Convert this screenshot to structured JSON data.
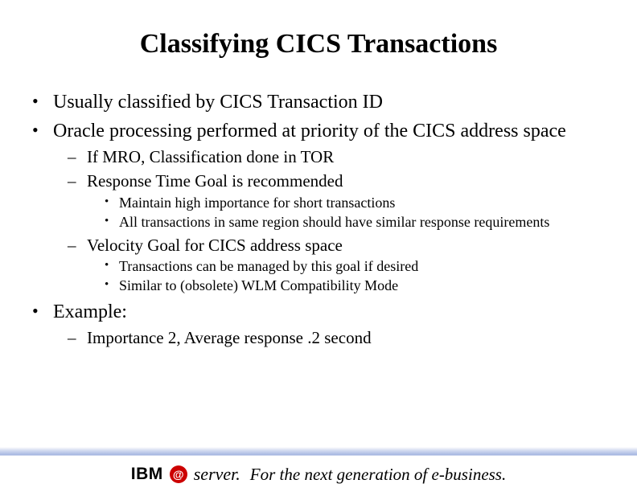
{
  "title": "Classifying CICS Transactions",
  "bullets": {
    "b1": "Usually classified by CICS Transaction ID",
    "b2": "Oracle processing performed at priority of the CICS address space",
    "b2_sub": {
      "s1": "If MRO, Classification done in TOR",
      "s2": "Response Time Goal is recommended",
      "s2_sub": {
        "t1": "Maintain high importance for short transactions",
        "t2": "All transactions in same region should have similar response requirements"
      },
      "s3": "Velocity Goal for CICS address space",
      "s3_sub": {
        "t1": "Transactions can be managed by this goal if desired",
        "t2": "Similar to (obsolete) WLM Compatibility Mode"
      }
    },
    "b3": "Example:",
    "b3_sub": {
      "s1": "Importance 2, Average response .2 second"
    }
  },
  "footer": {
    "ibm": "IBM",
    "at": "@",
    "server": "server.",
    "tagline": "For the next generation of e-business."
  },
  "colors": {
    "text": "#000000",
    "background": "#ffffff",
    "accent_red": "#cc0000",
    "gradient_blue": "#5a78c8"
  },
  "fonts": {
    "title_size_pt": 26,
    "body_size_pt": 18,
    "sub_size_pt": 16,
    "subsub_size_pt": 14,
    "footer_size_pt": 16
  }
}
